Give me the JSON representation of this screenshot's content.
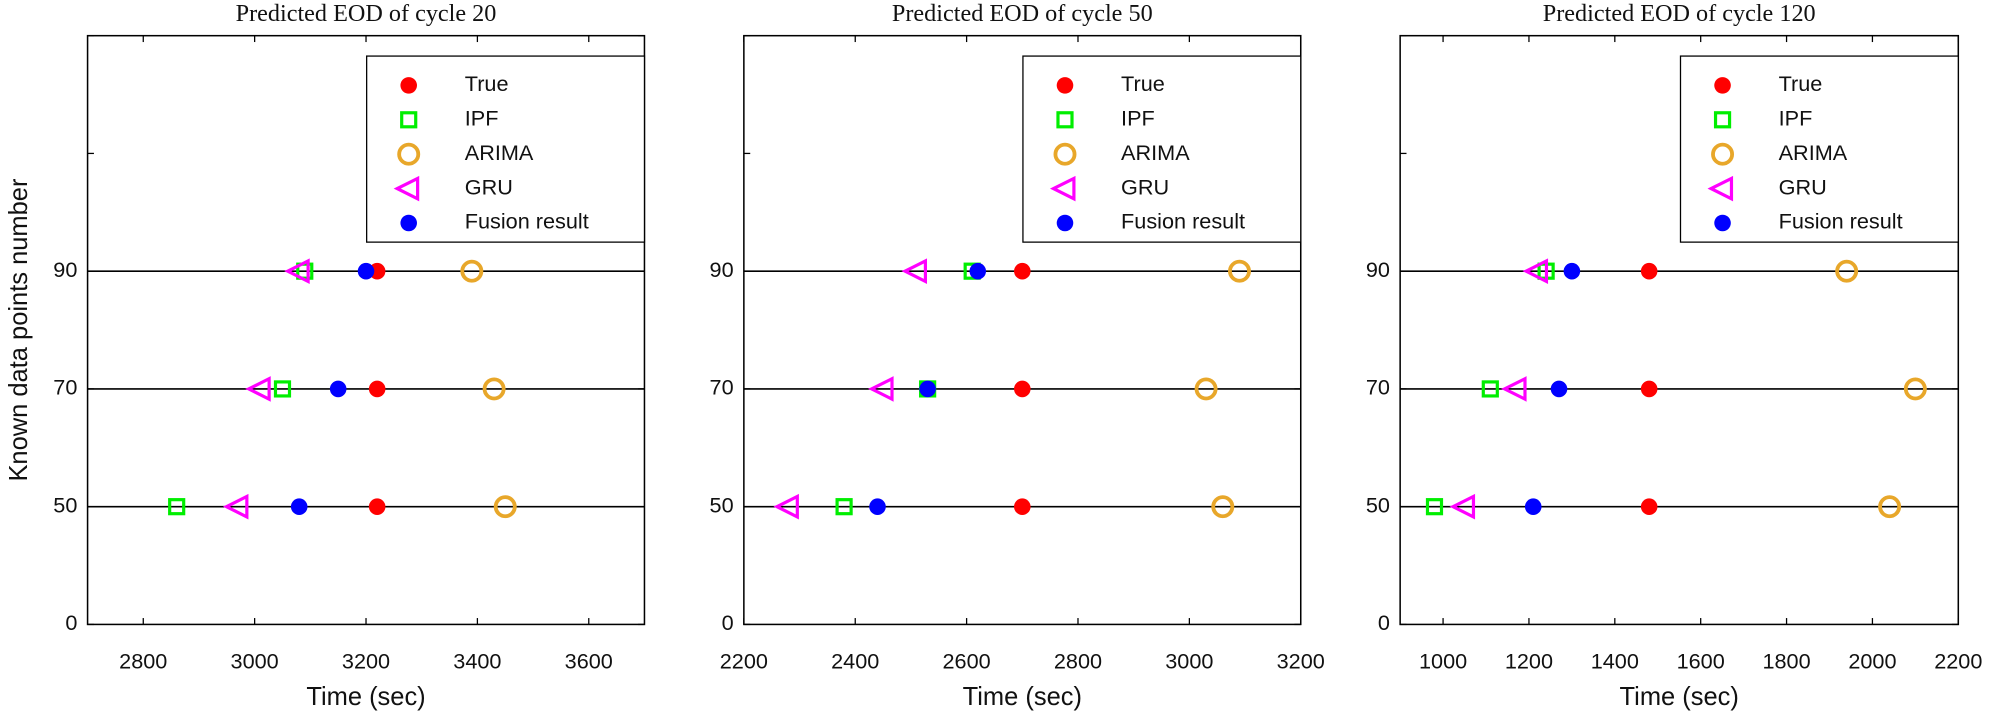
{
  "chart_data": [
    {
      "type": "scatter",
      "title": "Predicted EOD of cycle 20",
      "x_label": "Time (sec)",
      "y_label": "Known data points number",
      "y_categories": [
        "0",
        "50",
        "70",
        "90",
        null,
        null
      ],
      "xlim": [
        2700,
        3700
      ],
      "xticks": [
        2800,
        3000,
        3200,
        3400,
        3600
      ],
      "series": [
        {
          "name": "True",
          "color": "#ff0000",
          "marker": "dot",
          "values": [
            null,
            3220,
            3220,
            3220,
            null,
            null
          ]
        },
        {
          "name": "IPF",
          "color": "#00ee00",
          "marker": "square",
          "values": [
            null,
            2860,
            3050,
            3090,
            null,
            null
          ]
        },
        {
          "name": "ARIMA",
          "color": "#e8a72a",
          "marker": "circle",
          "values": [
            null,
            3450,
            3430,
            3390,
            null,
            null
          ]
        },
        {
          "name": "GRU",
          "color": "#ff00ff",
          "marker": "triangle-left",
          "values": [
            null,
            2970,
            3010,
            3080,
            null,
            null
          ]
        },
        {
          "name": "Fusion result",
          "color": "#0000ff",
          "marker": "dot",
          "values": [
            null,
            3080,
            3150,
            3200,
            null,
            null
          ]
        }
      ]
    },
    {
      "type": "scatter",
      "title": "Predicted EOD of cycle 50",
      "x_label": "Time (sec)",
      "y_categories": [
        "0",
        "50",
        "70",
        "90",
        null,
        null
      ],
      "xlim": [
        2200,
        3200
      ],
      "xticks": [
        2200,
        2400,
        2600,
        2800,
        3000,
        3200
      ],
      "series": [
        {
          "name": "True",
          "color": "#ff0000",
          "marker": "dot",
          "values": [
            null,
            2700,
            2700,
            2700,
            null,
            null
          ]
        },
        {
          "name": "IPF",
          "color": "#00ee00",
          "marker": "square",
          "values": [
            null,
            2380,
            2530,
            2610,
            null,
            null
          ]
        },
        {
          "name": "ARIMA",
          "color": "#e8a72a",
          "marker": "circle",
          "values": [
            null,
            3060,
            3030,
            3090,
            null,
            null
          ]
        },
        {
          "name": "GRU",
          "color": "#ff00ff",
          "marker": "triangle-left",
          "values": [
            null,
            2280,
            2450,
            2510,
            null,
            null
          ]
        },
        {
          "name": "Fusion result",
          "color": "#0000ff",
          "marker": "dot",
          "values": [
            null,
            2440,
            2530,
            2620,
            null,
            null
          ]
        }
      ]
    },
    {
      "type": "scatter",
      "title": "Predicted EOD of cycle 120",
      "x_label": "Time (sec)",
      "y_categories": [
        "0",
        "50",
        "70",
        "90",
        null,
        null
      ],
      "xlim": [
        900,
        2200
      ],
      "xticks": [
        1000,
        1200,
        1400,
        1600,
        1800,
        2000,
        2200
      ],
      "series": [
        {
          "name": "True",
          "color": "#ff0000",
          "marker": "dot",
          "values": [
            null,
            1480,
            1480,
            1480,
            null,
            null
          ]
        },
        {
          "name": "IPF",
          "color": "#00ee00",
          "marker": "square",
          "values": [
            null,
            980,
            1110,
            1240,
            null,
            null
          ]
        },
        {
          "name": "ARIMA",
          "color": "#e8a72a",
          "marker": "circle",
          "values": [
            null,
            2040,
            2100,
            1940,
            null,
            null
          ]
        },
        {
          "name": "GRU",
          "color": "#ff00ff",
          "marker": "triangle-left",
          "values": [
            null,
            1050,
            1170,
            1220,
            null,
            null
          ]
        },
        {
          "name": "Fusion result",
          "color": "#0000ff",
          "marker": "dot",
          "values": [
            null,
            1210,
            1270,
            1300,
            null,
            null
          ]
        }
      ]
    }
  ]
}
